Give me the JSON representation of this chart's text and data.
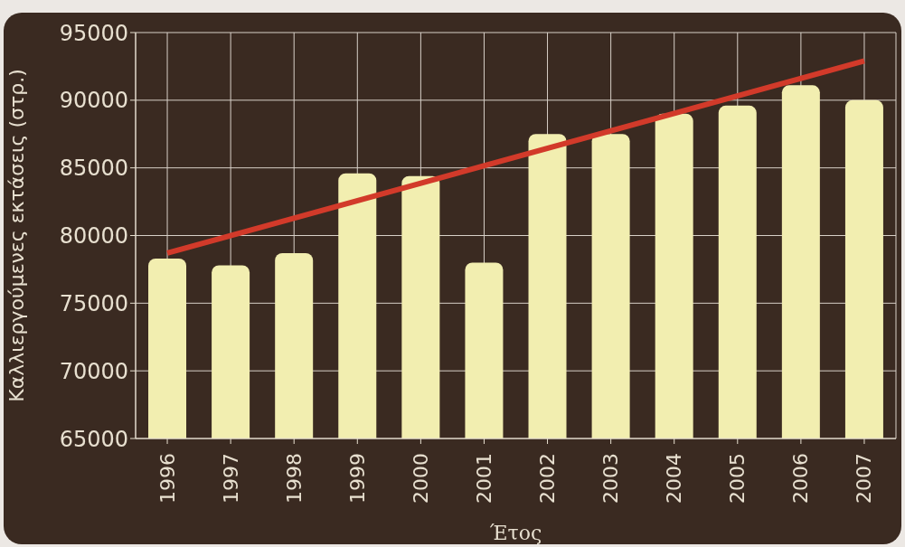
{
  "chart_data": {
    "type": "bar",
    "xlabel": "Έτος",
    "ylabel": "Καλλιεργούμενες εκτάσεις (στρ.)",
    "categories": [
      "1996",
      "1997",
      "1998",
      "1999",
      "2000",
      "2001",
      "2002",
      "2003",
      "2004",
      "2005",
      "2006",
      "2007"
    ],
    "series": [
      {
        "color": "#f2eeb0",
        "values": [
          78300,
          77800,
          78700,
          84600,
          84400,
          78000,
          87500,
          87500,
          89000,
          89600,
          91100,
          90000
        ]
      },
      {
        "type": "line",
        "color": "#d23a2a",
        "values": [
          78700,
          null,
          null,
          null,
          null,
          null,
          null,
          null,
          null,
          null,
          null,
          92900
        ]
      }
    ],
    "ylim": [
      65000,
      95000
    ],
    "yticks": [
      65000,
      70000,
      75000,
      80000,
      85000,
      90000,
      95000
    ],
    "grid": true,
    "marker": "none"
  }
}
